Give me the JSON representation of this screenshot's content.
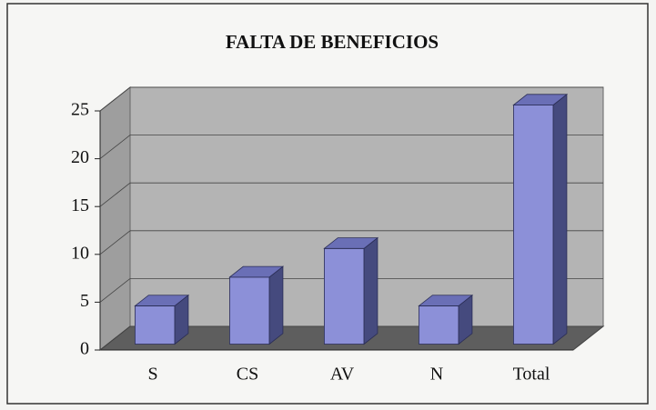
{
  "chart_data": {
    "type": "bar",
    "title": "FALTA DE BENEFICIOS",
    "categories": [
      "S",
      "CS",
      "AV",
      "N",
      "Total"
    ],
    "values": [
      4,
      7,
      10,
      4,
      25
    ],
    "color": "#8c90d8",
    "ylim": [
      0,
      25
    ],
    "yticks": [
      0,
      5,
      10,
      15,
      20,
      25
    ],
    "grid": true
  }
}
